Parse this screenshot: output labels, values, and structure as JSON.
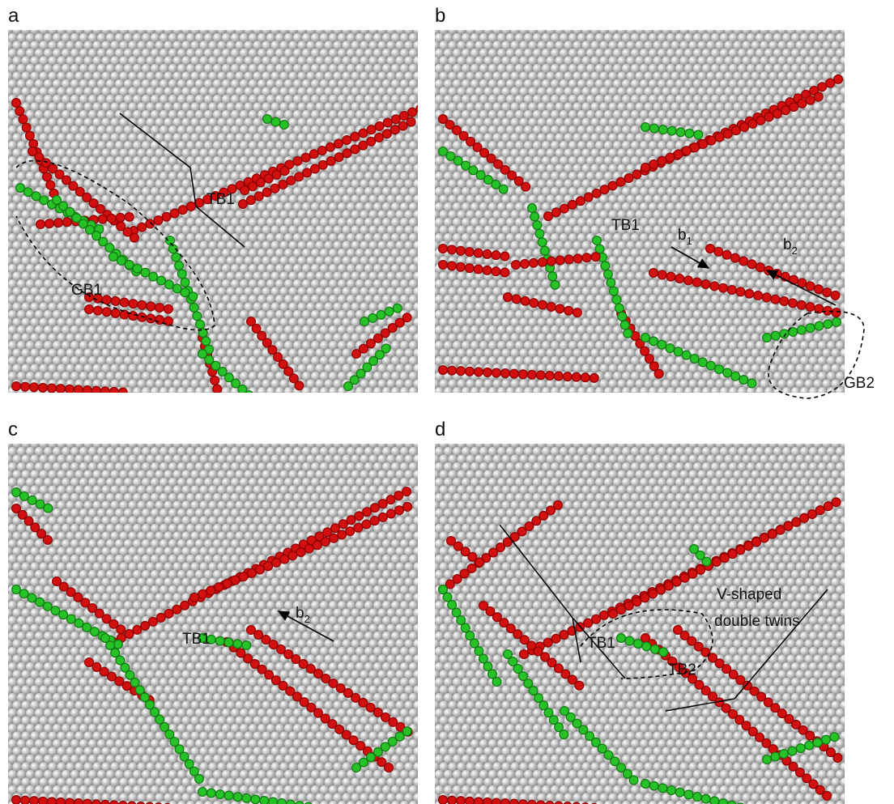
{
  "panels": [
    {
      "label": "a",
      "annotations": [
        "TB1",
        "GB1"
      ]
    },
    {
      "label": "b",
      "annotations": [
        "TB1",
        "GB2"
      ],
      "vectors": [
        {
          "base": "b",
          "sub": "1"
        },
        {
          "base": "b",
          "sub": "2"
        }
      ]
    },
    {
      "label": "c",
      "annotations": [
        "TB1"
      ],
      "vectors": [
        {
          "base": "b",
          "sub": "2"
        }
      ]
    },
    {
      "label": "d",
      "annotations": [
        "TB1",
        "TB2"
      ],
      "note": [
        "V-shaped",
        "double twins"
      ]
    }
  ]
}
